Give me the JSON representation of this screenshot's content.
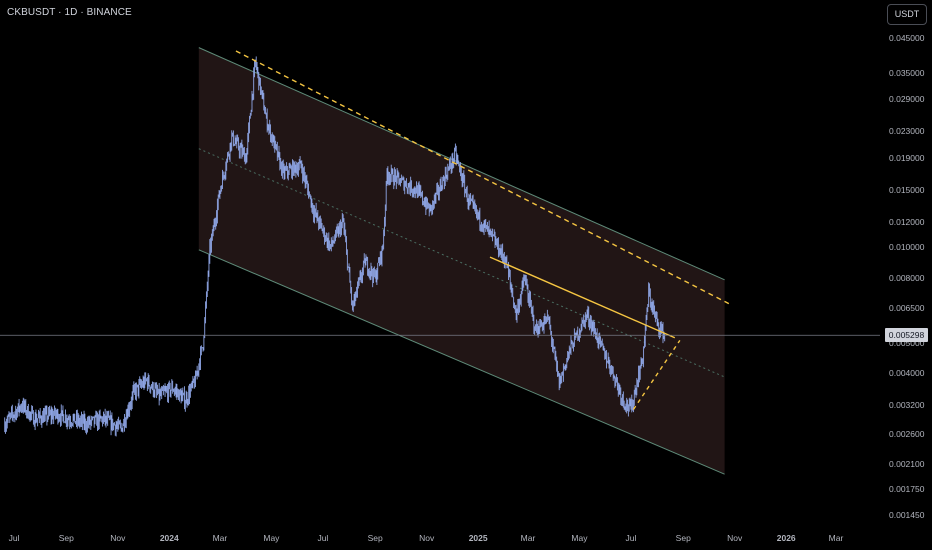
{
  "header": {
    "symbol_label": "CKBUSDT · 1D · BINANCE",
    "currency_button": "USDT"
  },
  "last_price": "0.005298",
  "colors": {
    "background": "#000000",
    "candle": "#8fa6e6",
    "channel_fill": "#231616",
    "channel_border": "#5e8a78",
    "midline": "#4a6e62",
    "resistance": "#f5c542",
    "price_line": "#787b86"
  },
  "chart_data": {
    "type": "candlestick",
    "title": "",
    "xlabel": "",
    "ylabel": "",
    "y_scale": "log",
    "x_ticks": [
      "Jul",
      "Sep",
      "Nov",
      "2024",
      "Mar",
      "May",
      "Jul",
      "Sep",
      "Nov",
      "2025",
      "Mar",
      "May",
      "Jul",
      "Sep",
      "Nov",
      "2026",
      "Mar"
    ],
    "y_ticks": [
      "0.045000",
      "0.035000",
      "0.029000",
      "0.023000",
      "0.019000",
      "0.015000",
      "0.012000",
      "0.010000",
      "0.008000",
      "0.006500",
      "0.005000",
      "0.004000",
      "0.003200",
      "0.002600",
      "0.002100",
      "0.001750",
      "0.001450"
    ],
    "price_path": [
      [
        "2023-06-20",
        0.0028
      ],
      [
        "2023-07-10",
        0.0032
      ],
      [
        "2023-07-25",
        0.0029
      ],
      [
        "2023-08-20",
        0.003
      ],
      [
        "2023-09-05",
        0.0029
      ],
      [
        "2023-09-25",
        0.0028
      ],
      [
        "2023-10-15",
        0.0029
      ],
      [
        "2023-11-05",
        0.0027
      ],
      [
        "2023-11-20",
        0.0035
      ],
      [
        "2023-12-05",
        0.0038
      ],
      [
        "2023-12-20",
        0.0034
      ],
      [
        "2024-01-05",
        0.0036
      ],
      [
        "2024-01-20",
        0.0033
      ],
      [
        "2024-02-01",
        0.0038
      ],
      [
        "2024-02-10",
        0.005
      ],
      [
        "2024-02-18",
        0.0098
      ],
      [
        "2024-03-01",
        0.015
      ],
      [
        "2024-03-15",
        0.022
      ],
      [
        "2024-04-01",
        0.019
      ],
      [
        "2024-04-12",
        0.038
      ],
      [
        "2024-04-25",
        0.025
      ],
      [
        "2024-05-15",
        0.017
      ],
      [
        "2024-06-05",
        0.018
      ],
      [
        "2024-06-20",
        0.013
      ],
      [
        "2024-07-10",
        0.01
      ],
      [
        "2024-07-25",
        0.012
      ],
      [
        "2024-08-05",
        0.0065
      ],
      [
        "2024-08-20",
        0.009
      ],
      [
        "2024-09-01",
        0.008
      ],
      [
        "2024-09-10",
        0.01
      ],
      [
        "2024-09-15",
        0.017
      ],
      [
        "2024-10-01",
        0.016
      ],
      [
        "2024-10-20",
        0.015
      ],
      [
        "2024-11-05",
        0.013
      ],
      [
        "2024-11-20",
        0.016
      ],
      [
        "2024-12-05",
        0.0195
      ],
      [
        "2024-12-20",
        0.014
      ],
      [
        "2025-01-05",
        0.012
      ],
      [
        "2025-01-20",
        0.0105
      ],
      [
        "2025-02-03",
        0.009
      ],
      [
        "2025-02-15",
        0.0062
      ],
      [
        "2025-02-25",
        0.008
      ],
      [
        "2025-03-10",
        0.0055
      ],
      [
        "2025-03-25",
        0.006
      ],
      [
        "2025-04-07",
        0.0037
      ],
      [
        "2025-04-20",
        0.0048
      ],
      [
        "2025-05-10",
        0.0062
      ],
      [
        "2025-05-25",
        0.005
      ],
      [
        "2025-06-10",
        0.004
      ],
      [
        "2025-06-22",
        0.0033
      ],
      [
        "2025-07-01",
        0.0031
      ],
      [
        "2025-07-15",
        0.0045
      ],
      [
        "2025-07-22",
        0.0072
      ],
      [
        "2025-08-01",
        0.0058
      ],
      [
        "2025-08-10",
        0.0053
      ]
    ],
    "annotations": {
      "channel": "descending parallel channel",
      "midline": "dotted",
      "resistance": "dashed yellow",
      "trendline": "solid yellow",
      "support": "dashed yellow"
    }
  }
}
